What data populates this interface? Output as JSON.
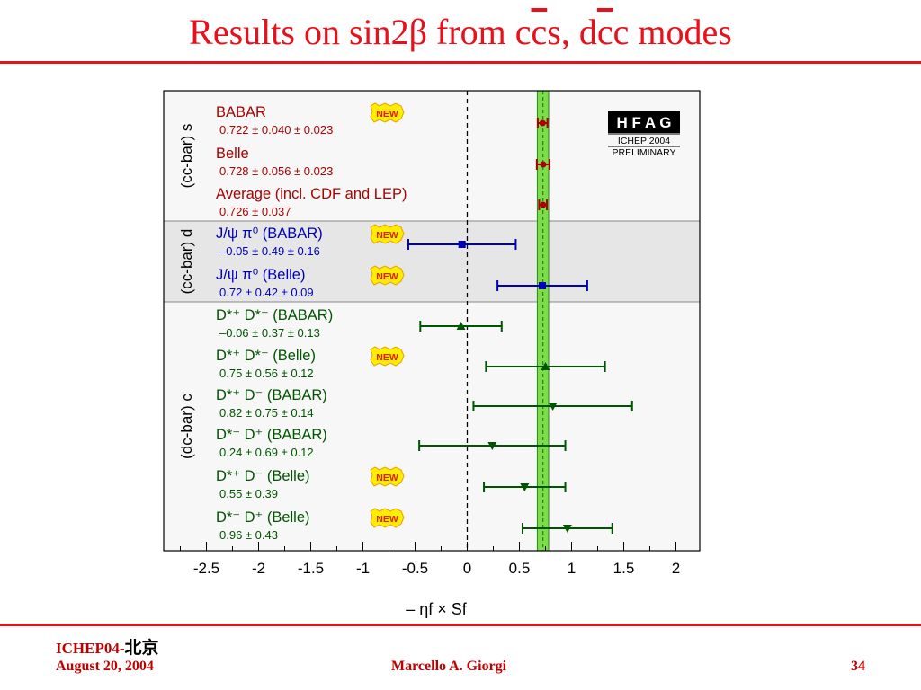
{
  "slide": {
    "title_pre": "Results on sin2β from c",
    "title_c1": "c",
    "title_mid": "s, d",
    "title_c2": "c",
    "title_post": "c modes",
    "footer_conf": "ICHEP04-",
    "footer_city": "北京",
    "footer_date": "August 20, 2004",
    "footer_author": "Marcello A. Giorgi",
    "footer_page": "34",
    "accent_color": "#e8101a"
  },
  "hfag": {
    "logo": "HFAG",
    "conf": "ICHEP 2004",
    "status": "PRELIMINARY",
    "new_badge": "NEW"
  },
  "chart_data": {
    "type": "scatter",
    "xlabel": "– ηf × Sf",
    "xlim": [
      -2.9,
      2.25
    ],
    "xticks": [
      -2.5,
      -2,
      -1.5,
      -1,
      -0.5,
      0,
      0.5,
      1,
      1.5,
      2
    ],
    "xtick_labels": [
      "-2.5",
      "-2",
      "-1.5",
      "-1",
      "-0.5",
      "0",
      "0.5",
      "1",
      "1.5",
      "2"
    ],
    "reference_line": 0,
    "average_band": {
      "center": 0.726,
      "error": 0.037,
      "color": "#7ddc4a"
    },
    "groups": [
      {
        "label": "(cc-bar) s",
        "color": "#aa0000",
        "shaded": false
      },
      {
        "label": "(cc-bar) d",
        "color": "#0000bb",
        "shaded": true
      },
      {
        "label": "(dc-bar) c",
        "color": "#005500",
        "shaded": false
      }
    ],
    "series": [
      {
        "name": "BABAR",
        "value_text": "0.722 ± 0.040 ± 0.023",
        "value": 0.722,
        "error": 0.046,
        "group": 0,
        "marker": "circle",
        "is_new": true
      },
      {
        "name": "Belle",
        "value_text": "0.728 ± 0.056 ± 0.023",
        "value": 0.728,
        "error": 0.061,
        "group": 0,
        "marker": "circle",
        "is_new": false
      },
      {
        "name": "Average (incl. CDF and LEP)",
        "value_text": "0.726 ± 0.037",
        "value": 0.726,
        "error": 0.037,
        "group": 0,
        "marker": "circle",
        "is_new": false
      },
      {
        "name": "J/ψ π⁰ (BABAR)",
        "value_text": "–0.05 ± 0.49 ± 0.16",
        "value": -0.05,
        "error": 0.515,
        "group": 1,
        "marker": "square",
        "is_new": true
      },
      {
        "name": "J/ψ π⁰ (Belle)",
        "value_text": "0.72 ± 0.42 ± 0.09",
        "value": 0.72,
        "error": 0.43,
        "group": 1,
        "marker": "square",
        "is_new": true
      },
      {
        "name": "D*⁺ D*⁻ (BABAR)",
        "value_text": "–0.06 ± 0.37 ± 0.13",
        "value": -0.06,
        "error": 0.39,
        "group": 2,
        "marker": "triangle-up",
        "is_new": false
      },
      {
        "name": "D*⁺ D*⁻ (Belle)",
        "value_text": "0.75 ± 0.56 ± 0.12",
        "value": 0.75,
        "error": 0.57,
        "group": 2,
        "marker": "triangle-up",
        "is_new": true
      },
      {
        "name": "D*⁺ D⁻ (BABAR)",
        "value_text": "0.82 ± 0.75 ± 0.14",
        "value": 0.82,
        "error": 0.76,
        "group": 2,
        "marker": "triangle-down",
        "is_new": false
      },
      {
        "name": "D*⁻ D⁺ (BABAR)",
        "value_text": "0.24 ± 0.69 ± 0.12",
        "value": 0.24,
        "error": 0.7,
        "group": 2,
        "marker": "triangle-down",
        "is_new": false
      },
      {
        "name": "D*⁺ D⁻ (Belle)",
        "value_text": "0.55 ± 0.39",
        "value": 0.55,
        "error": 0.39,
        "group": 2,
        "marker": "triangle-down",
        "is_new": true
      },
      {
        "name": "D*⁻ D⁺ (Belle)",
        "value_text": "0.96 ± 0.43",
        "value": 0.96,
        "error": 0.43,
        "group": 2,
        "marker": "triangle-down",
        "is_new": true
      }
    ]
  }
}
